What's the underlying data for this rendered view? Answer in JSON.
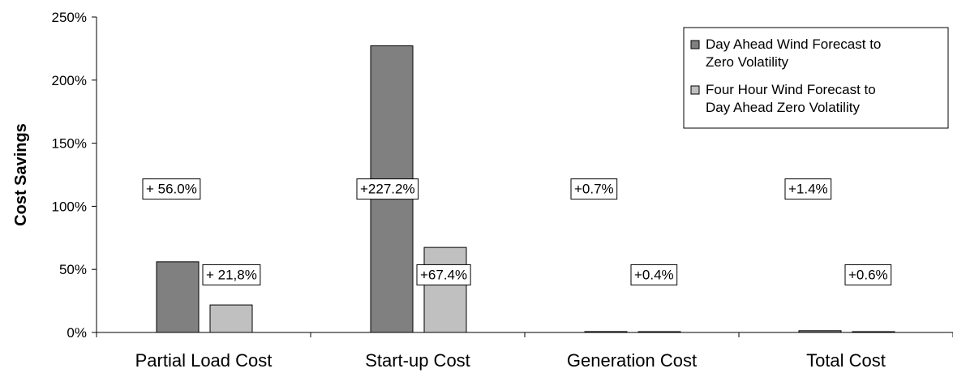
{
  "chart_data": {
    "type": "bar",
    "categories": [
      "Partial Load Cost",
      "Start-up Cost",
      "Generation Cost",
      "Total Cost"
    ],
    "ylabel": "Cost Savings",
    "ylim": [
      0,
      250
    ],
    "yticks": [
      0,
      50,
      100,
      150,
      200,
      250
    ],
    "ytick_labels": [
      "0%",
      "50%",
      "100%",
      "150%",
      "200%",
      "250%"
    ],
    "grid": false,
    "legend": "top-right",
    "series": [
      {
        "name": "Day Ahead Wind Forecast to Zero Volatility",
        "legend_lines": [
          "Day Ahead Wind Forecast to",
          "Zero Volatility"
        ],
        "color": "#808080",
        "values": [
          56.0,
          227.2,
          0.7,
          1.4
        ],
        "labels": [
          "+ 56.0%",
          "+227.2%",
          "+0.7%",
          "+1.4%"
        ]
      },
      {
        "name": "Four Hour Wind Forecast to Day Ahead Zero Volatility",
        "legend_lines": [
          "Four Hour Wind Forecast to",
          "Day Ahead Zero Volatility"
        ],
        "color": "#c0c0c0",
        "values": [
          21.8,
          67.4,
          0.4,
          0.6
        ],
        "labels": [
          "+ 21,8%",
          "+67.4%",
          "+0.4%",
          "+0.6%"
        ]
      }
    ]
  }
}
